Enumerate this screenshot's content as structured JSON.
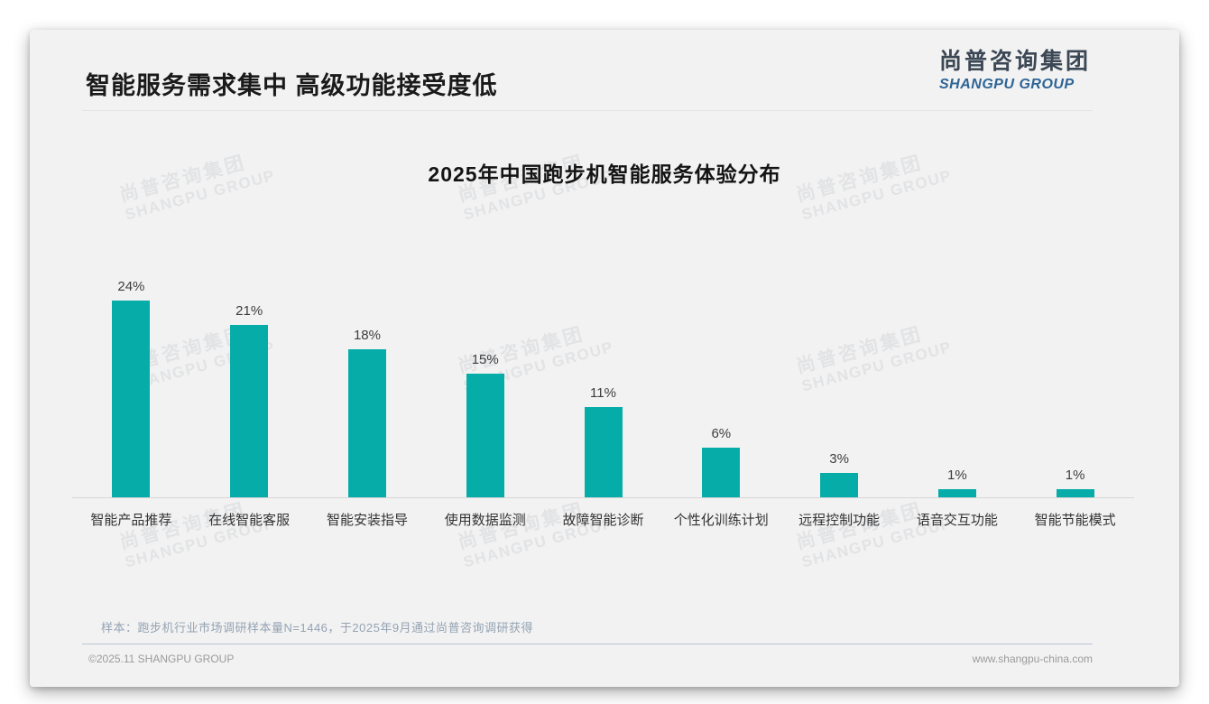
{
  "header": {
    "title": "智能服务需求集中 高级功能接受度低",
    "logo_cn": "尚普咨询集团",
    "logo_en": "SHANGPU GROUP"
  },
  "watermark": {
    "line1": "尚普咨询集团",
    "line2": "SHANGPU GROUP"
  },
  "chart_data": {
    "type": "bar",
    "title": "2025年中国跑步机智能服务体验分布",
    "categories": [
      "智能产品推荐",
      "在线智能客服",
      "智能安装指导",
      "使用数据监测",
      "故障智能诊断",
      "个性化训练计划",
      "远程控制功能",
      "语音交互功能",
      "智能节能模式"
    ],
    "values": [
      24,
      21,
      18,
      15,
      11,
      6,
      3,
      1,
      1
    ],
    "unit": "%",
    "bar_color": "#06ada8",
    "ylim": [
      0,
      25
    ],
    "grid": false,
    "legend": false,
    "xlabel": "",
    "ylabel": ""
  },
  "footer": {
    "note": "样本：跑步机行业市场调研样本量N=1446，于2025年9月通过尚普咨询调研获得",
    "copyright": "©2025.11 SHANGPU GROUP",
    "website": "www.shangpu-china.com"
  }
}
